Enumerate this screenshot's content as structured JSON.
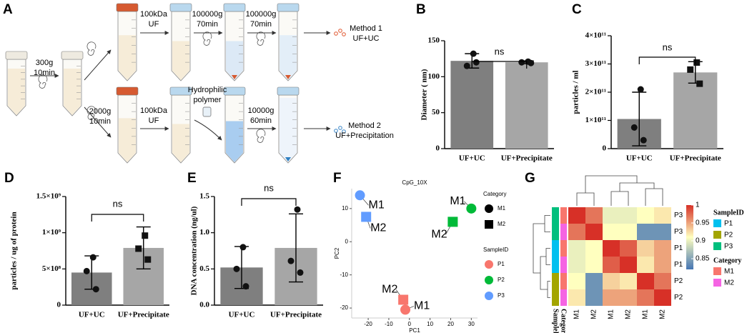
{
  "diagram": {
    "panel": "A",
    "labels": [
      [
        "300g",
        "10min"
      ],
      [
        "2000g",
        "10min"
      ],
      [
        "100kDa",
        "UF"
      ],
      [
        "100000g",
        "70min"
      ],
      [
        "100000g",
        "70min"
      ],
      [
        "Method 1",
        "UF+UC"
      ],
      [
        "100kDa",
        "UF"
      ],
      [
        "Hydrophilic",
        "polymer"
      ],
      [
        "10000g",
        "60min"
      ],
      [
        "Method 2",
        "UF+Precipitation"
      ]
    ]
  },
  "chart_data": [
    {
      "type": "bar",
      "panel": "B",
      "ylabel": "Diameter ( nm)",
      "categories": [
        "UF+UC",
        "UF+Precipitate"
      ],
      "colors": [
        "#7f7f7f",
        "#a6a6a6"
      ],
      "values": [
        122,
        120
      ],
      "errors": [
        10,
        2
      ],
      "points": [
        [
          132,
          115,
          120
        ],
        [
          121,
          120,
          119
        ]
      ],
      "markers": [
        "circle",
        "circle"
      ],
      "ylim": [
        0,
        150
      ],
      "yticks": [
        0,
        50,
        100,
        150
      ],
      "annotation": "ns"
    },
    {
      "type": "bar",
      "panel": "C",
      "ylabel": "particles / ml",
      "categories": [
        "UF+UC",
        "UF+Precipitate"
      ],
      "colors": [
        "#7f7f7f",
        "#a6a6a6"
      ],
      "values": [
        105000000000.0,
        270000000000.0
      ],
      "errors": [
        95000000000.0,
        38000000000.0
      ],
      "points": [
        [
          210000000000.0,
          75000000000.0,
          30000000000.0
        ],
        [
          305000000000.0,
          280000000000.0,
          230000000000.0
        ]
      ],
      "markers": [
        "circle",
        "square"
      ],
      "ylim": [
        0,
        400000000000.0
      ],
      "yticks": [
        0,
        {
          "value": 100000000000.0,
          "label": "1×10¹¹"
        },
        {
          "value": 200000000000.0,
          "label": "2×10¹¹"
        },
        {
          "value": 300000000000.0,
          "label": "3×10¹¹"
        },
        {
          "value": 400000000000.0,
          "label": "4×10¹¹"
        }
      ],
      "annotation": "ns"
    },
    {
      "type": "bar",
      "panel": "D",
      "ylabel": "particles / ug of protein",
      "categories": [
        "UF+UC",
        "UF+Precipitate"
      ],
      "colors": [
        "#7f7f7f",
        "#a6a6a6"
      ],
      "values": [
        450000000.0,
        790000000.0
      ],
      "errors": [
        230000000.0,
        290000000.0
      ],
      "points": [
        [
          660000000.0,
          470000000.0,
          220000000.0
        ],
        [
          960000000.0,
          780000000.0,
          630000000.0
        ]
      ],
      "markers": [
        "circle",
        "square"
      ],
      "ylim": [
        0,
        1500000000.0
      ],
      "yticks": [
        0,
        {
          "value": 500000000.0,
          "label": "5×10⁸"
        },
        {
          "value": 1000000000.0,
          "label": "1×10⁹"
        },
        {
          "value": 1500000000.0,
          "label": "1.5×10⁹"
        }
      ],
      "annotation": "ns"
    },
    {
      "type": "bar",
      "panel": "E",
      "ylabel": "DNA concentration (ng/ul)",
      "categories": [
        "UF+UC",
        "UF+Precipitate"
      ],
      "colors": [
        "#7f7f7f",
        "#a6a6a6"
      ],
      "values": [
        0.52,
        0.79
      ],
      "errors": [
        0.29,
        0.47
      ],
      "points": [
        [
          0.8,
          0.5,
          0.26
        ],
        [
          1.32,
          0.61,
          0.45
        ]
      ],
      "markers": [
        "circle",
        "circle"
      ],
      "ylim": [
        0,
        1.5
      ],
      "yticks": [
        {
          "value": 0,
          "label": "0.0"
        },
        0.5,
        {
          "value": 1,
          "label": "1.0"
        },
        1.5
      ],
      "annotation": "ns"
    },
    {
      "type": "scatter",
      "panel": "F",
      "title": "CpG_10X",
      "xlabel": "PC1",
      "ylabel": "PC2",
      "xlim": [
        -28,
        33
      ],
      "xticks": [
        -20,
        -10,
        0,
        10,
        20,
        30
      ],
      "ylim": [
        -23,
        16
      ],
      "yticks": [
        -20,
        -10,
        0,
        10
      ],
      "category_title": "Category",
      "categories": [
        {
          "name": "M1",
          "shape": "circle"
        },
        {
          "name": "M2",
          "shape": "square"
        }
      ],
      "sample_title": "SampleID",
      "samples": [
        {
          "name": "P1",
          "color": "#f8766d"
        },
        {
          "name": "P2",
          "color": "#00ba38"
        },
        {
          "name": "P3",
          "color": "#619cff"
        }
      ],
      "points": [
        {
          "x": -24,
          "y": 14,
          "category": "M1",
          "sample": "P3"
        },
        {
          "x": -21,
          "y": 7.5,
          "category": "M2",
          "sample": "P3"
        },
        {
          "x": 30,
          "y": 10,
          "category": "M1",
          "sample": "P2"
        },
        {
          "x": 21,
          "y": 6,
          "category": "M2",
          "sample": "P2"
        },
        {
          "x": -3,
          "y": -17.5,
          "category": "M2",
          "sample": "P1"
        },
        {
          "x": -2,
          "y": -20.5,
          "category": "M1",
          "sample": "P1"
        }
      ]
    },
    {
      "type": "heatmap",
      "panel": "G",
      "columns": [
        "M1",
        "M2",
        "M1",
        "M2",
        "M1",
        "M2"
      ],
      "rows": [
        "P3",
        "P3",
        "P1",
        "P1",
        "P2",
        "P2"
      ],
      "values": [
        [
          1,
          0.97,
          0.9,
          0.9,
          0.91,
          0.92
        ],
        [
          0.97,
          1,
          0.91,
          0.91,
          0.84,
          0.84
        ],
        [
          0.9,
          0.91,
          1,
          0.98,
          0.93,
          0.95
        ],
        [
          0.9,
          0.91,
          0.98,
          1,
          0.92,
          0.95
        ],
        [
          0.91,
          0.84,
          0.93,
          0.92,
          1,
          0.97
        ],
        [
          0.92,
          0.84,
          0.95,
          0.95,
          0.97,
          1
        ]
      ],
      "colorscale": {
        "lim": [
          0.82,
          1
        ],
        "ticks": [
          0.85,
          0.9,
          0.95,
          1
        ],
        "colors": [
          "#4575b4",
          "#ffffbf",
          "#d73027"
        ]
      },
      "sample_title": "SampleID",
      "samples": [
        {
          "name": "P1",
          "color": "#00c0ef"
        },
        {
          "name": "P2",
          "color": "#a3a500"
        },
        {
          "name": "P3",
          "color": "#00bf7d"
        }
      ],
      "category_title": "Category",
      "categories": [
        {
          "name": "M1",
          "color": "#f8766d"
        },
        {
          "name": "M2",
          "color": "#f564e3"
        }
      ]
    }
  ]
}
